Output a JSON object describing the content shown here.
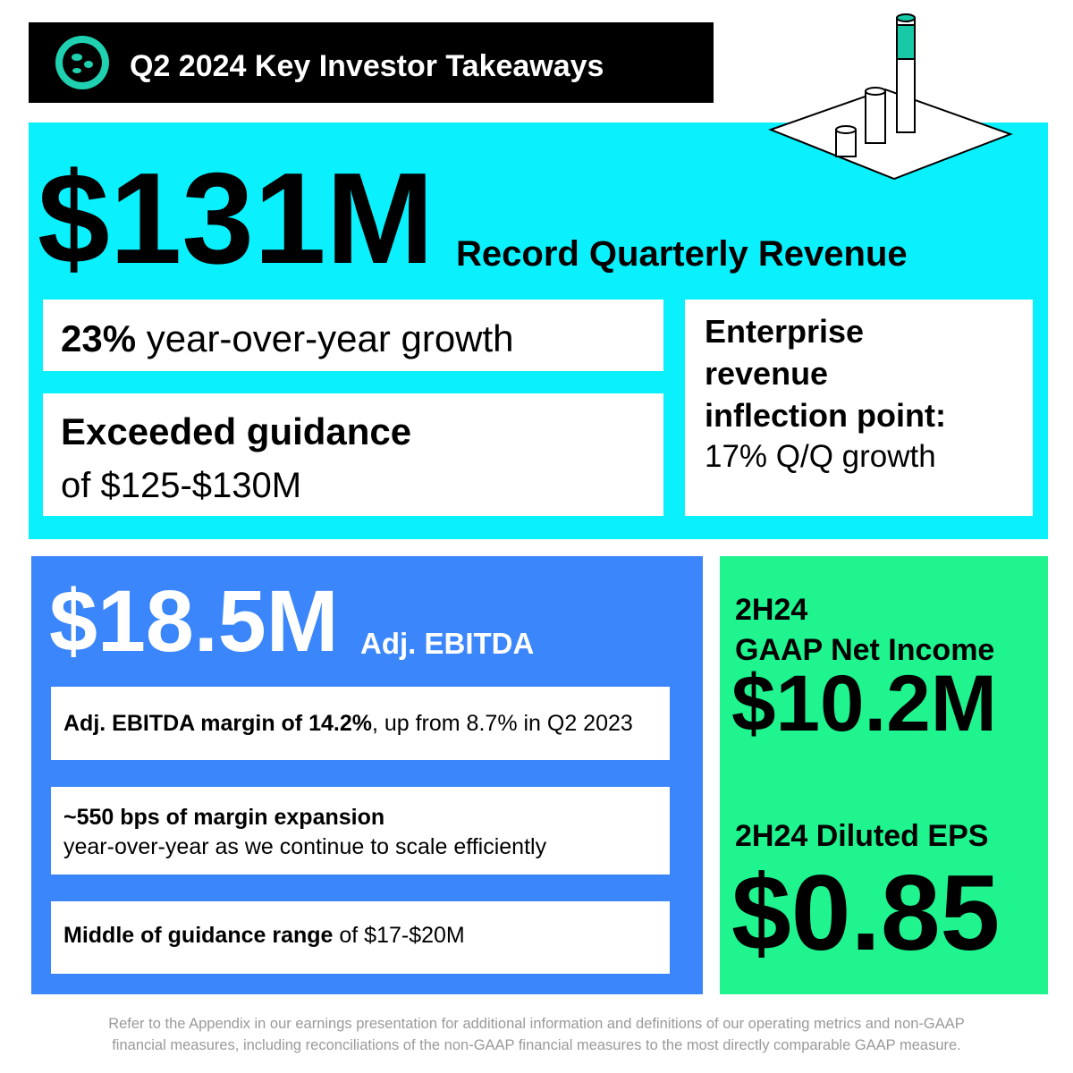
{
  "header": {
    "title": "Q2 2024 Key Investor Takeaways"
  },
  "revenue": {
    "amount": "$131M",
    "label": "Record Quarterly Revenue",
    "growth": {
      "bold": "23%",
      "text": " year-over-year growth"
    },
    "guidance": {
      "title": "Exceeded guidance",
      "text": "of $125-$130M"
    },
    "enterprise": {
      "title": [
        "Enterprise",
        "revenue",
        "inflection point:"
      ],
      "text": "17% Q/Q growth"
    }
  },
  "ebitda": {
    "amount": "$18.5M",
    "label": "Adj. EBITDA",
    "points": [
      {
        "bold": "Adj. EBITDA margin of 14.2%",
        "text": ", up from 8.7% in Q2 2023"
      },
      {
        "bold": "~550 bps of margin expansion",
        "text": "year-over-year as we continue to scale efficiently"
      },
      {
        "bold": "Middle of guidance range",
        "text": " of $17-$20M"
      }
    ]
  },
  "net_income": {
    "period": "2H24",
    "label": "GAAP Net Income",
    "amount": "$10.2M",
    "eps_label": "2H24 Diluted EPS",
    "eps": "$0.85"
  },
  "footer": {
    "lines": [
      "Refer to the Appendix in our earnings presentation for additional information and definitions of our operating metrics and non-GAAP",
      "financial measures, including reconciliations of the non-GAAP financial measures to the most directly comparable GAAP measure."
    ]
  }
}
